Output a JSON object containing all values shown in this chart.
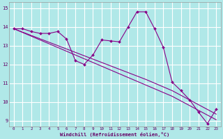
{
  "xlabel": "Windchill (Refroidissement éolien,°C)",
  "background_color": "#b0e8e8",
  "line_color": "#880088",
  "grid_color": "#ffffff",
  "yticks": [
    9,
    10,
    11,
    12,
    13,
    14,
    15
  ],
  "xticks": [
    0,
    1,
    2,
    3,
    4,
    5,
    6,
    7,
    8,
    9,
    10,
    11,
    12,
    13,
    14,
    15,
    16,
    17,
    18,
    19,
    20,
    21,
    22,
    23
  ],
  "hours": [
    0,
    1,
    2,
    3,
    4,
    5,
    6,
    7,
    8,
    9,
    10,
    11,
    12,
    13,
    14,
    15,
    16,
    17,
    18,
    19,
    20,
    21,
    22,
    23
  ],
  "line_main": [
    13.9,
    13.9,
    13.75,
    13.65,
    13.65,
    13.75,
    13.35,
    12.2,
    12.0,
    12.5,
    13.3,
    13.25,
    13.2,
    14.0,
    14.8,
    14.8,
    13.9,
    12.9,
    11.05,
    10.6,
    10.1,
    9.45,
    8.85,
    9.6
  ],
  "line_trend1": [
    13.9,
    13.7,
    13.5,
    13.3,
    13.1,
    12.9,
    12.7,
    12.5,
    12.3,
    12.1,
    11.9,
    11.7,
    11.5,
    11.3,
    11.1,
    10.9,
    10.7,
    10.5,
    10.3,
    10.05,
    9.8,
    9.55,
    9.3,
    9.05
  ],
  "line_trend2": [
    13.9,
    13.72,
    13.54,
    13.36,
    13.18,
    13.0,
    12.82,
    12.64,
    12.46,
    12.28,
    12.1,
    11.92,
    11.74,
    11.56,
    11.38,
    11.2,
    11.0,
    10.8,
    10.6,
    10.35,
    10.1,
    9.85,
    9.6,
    9.35
  ]
}
